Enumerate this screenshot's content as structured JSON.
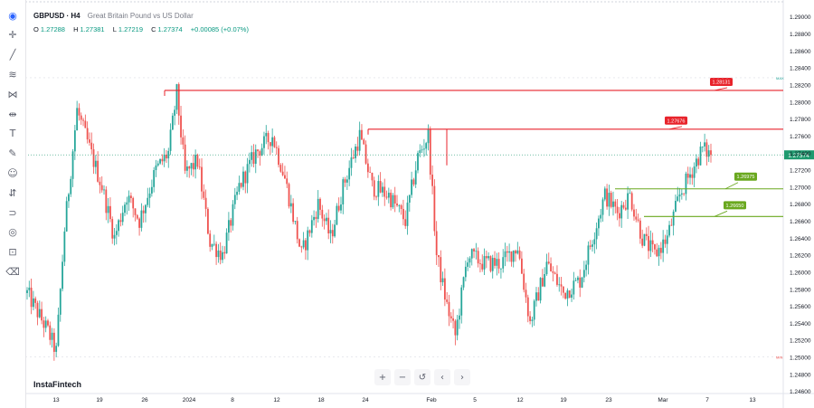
{
  "header": {
    "symbol": "GBPUSD · H4",
    "description": "Great Britain Pound vs US Dollar",
    "ohlc": [
      {
        "label": "O",
        "value": "1.27288"
      },
      {
        "label": "H",
        "value": "1.27381"
      },
      {
        "label": "L",
        "value": "1.27219"
      },
      {
        "label": "C",
        "value": "1.27374"
      }
    ],
    "change": "+0.00085 (+0.07%)"
  },
  "watermark": "InstaFintech",
  "toolbar": {
    "tools": [
      "logo-icon",
      "crosshair-icon",
      "trend-line-icon",
      "fib-icon",
      "pattern-icon",
      "measure-icon",
      "text-icon",
      "brush-icon",
      "emoji-icon",
      "forecast-icon",
      "magnet-icon",
      "eye-icon",
      "lock-icon",
      "trash-icon"
    ]
  },
  "controls": {
    "zoom_in": "+",
    "zoom_out": "−",
    "reset": "↺",
    "scroll_left": "‹",
    "scroll_right": "›"
  },
  "colors": {
    "up": "#26a69a",
    "down": "#ef5350",
    "resistance": "#e8232b",
    "support": "#6aa81f",
    "price_tag": "#1f9a6f"
  },
  "chart_data": {
    "type": "candlestick",
    "y_ticks": [
      "1.29000",
      "1.28800",
      "1.28600",
      "1.28400",
      "1.28200",
      "1.28000",
      "1.27800",
      "1.27600",
      "1.27400",
      "1.27200",
      "1.27000",
      "1.26800",
      "1.26600",
      "1.26400",
      "1.26200",
      "1.26000",
      "1.25800",
      "1.25600",
      "1.25400",
      "1.25200",
      "1.25000",
      "1.24800",
      "1.24600"
    ],
    "ylim": [
      1.2457,
      1.2913
    ],
    "x_ticks": [
      "13",
      "19",
      "26",
      "2024",
      "8",
      "12",
      "18",
      "24",
      "Feb",
      "5",
      "12",
      "19",
      "23",
      "Mar",
      "7",
      "13"
    ],
    "current_price": {
      "value": 1.27374,
      "label": "1.27374"
    },
    "levels": [
      {
        "kind": "resistance",
        "value": 1.28131,
        "label": "1.28131"
      },
      {
        "kind": "resistance",
        "value": 1.27676,
        "label": "1.27676"
      },
      {
        "kind": "support",
        "value": 1.26975,
        "label": "1.26975"
      },
      {
        "kind": "support",
        "value": 1.2665,
        "label": "1.26650"
      }
    ],
    "max_marker": {
      "value": 1.2828,
      "label": "MAX"
    },
    "min_marker": {
      "value": 1.25,
      "label": "MIN"
    },
    "anchors": [
      [
        0,
        1.2575
      ],
      [
        10,
        1.253
      ],
      [
        14,
        1.2506
      ],
      [
        18,
        1.265
      ],
      [
        24,
        1.279
      ],
      [
        28,
        1.276
      ],
      [
        36,
        1.27
      ],
      [
        42,
        1.264
      ],
      [
        48,
        1.269
      ],
      [
        54,
        1.266
      ],
      [
        62,
        1.272
      ],
      [
        68,
        1.274
      ],
      [
        72,
        1.281
      ],
      [
        76,
        1.2715
      ],
      [
        82,
        1.273
      ],
      [
        88,
        1.2635
      ],
      [
        94,
        1.262
      ],
      [
        102,
        1.27
      ],
      [
        110,
        1.274
      ],
      [
        118,
        1.276
      ],
      [
        124,
        1.271
      ],
      [
        132,
        1.262
      ],
      [
        140,
        1.268
      ],
      [
        146,
        1.264
      ],
      [
        152,
        1.27
      ],
      [
        160,
        1.276
      ],
      [
        166,
        1.27
      ],
      [
        174,
        1.269
      ],
      [
        182,
        1.266
      ],
      [
        188,
        1.2735
      ],
      [
        193,
        1.276
      ],
      [
        197,
        1.262
      ],
      [
        202,
        1.256
      ],
      [
        206,
        1.2525
      ],
      [
        212,
        1.262
      ],
      [
        220,
        1.261
      ],
      [
        228,
        1.261
      ],
      [
        236,
        1.263
      ],
      [
        242,
        1.254
      ],
      [
        250,
        1.261
      ],
      [
        258,
        1.2575
      ],
      [
        266,
        1.259
      ],
      [
        272,
        1.264
      ],
      [
        278,
        1.269
      ],
      [
        284,
        1.267
      ],
      [
        290,
        1.269
      ],
      [
        296,
        1.264
      ],
      [
        302,
        1.262
      ],
      [
        308,
        1.264
      ],
      [
        314,
        1.269
      ],
      [
        320,
        1.272
      ],
      [
        325,
        1.2745
      ],
      [
        329,
        1.2737
      ]
    ]
  }
}
